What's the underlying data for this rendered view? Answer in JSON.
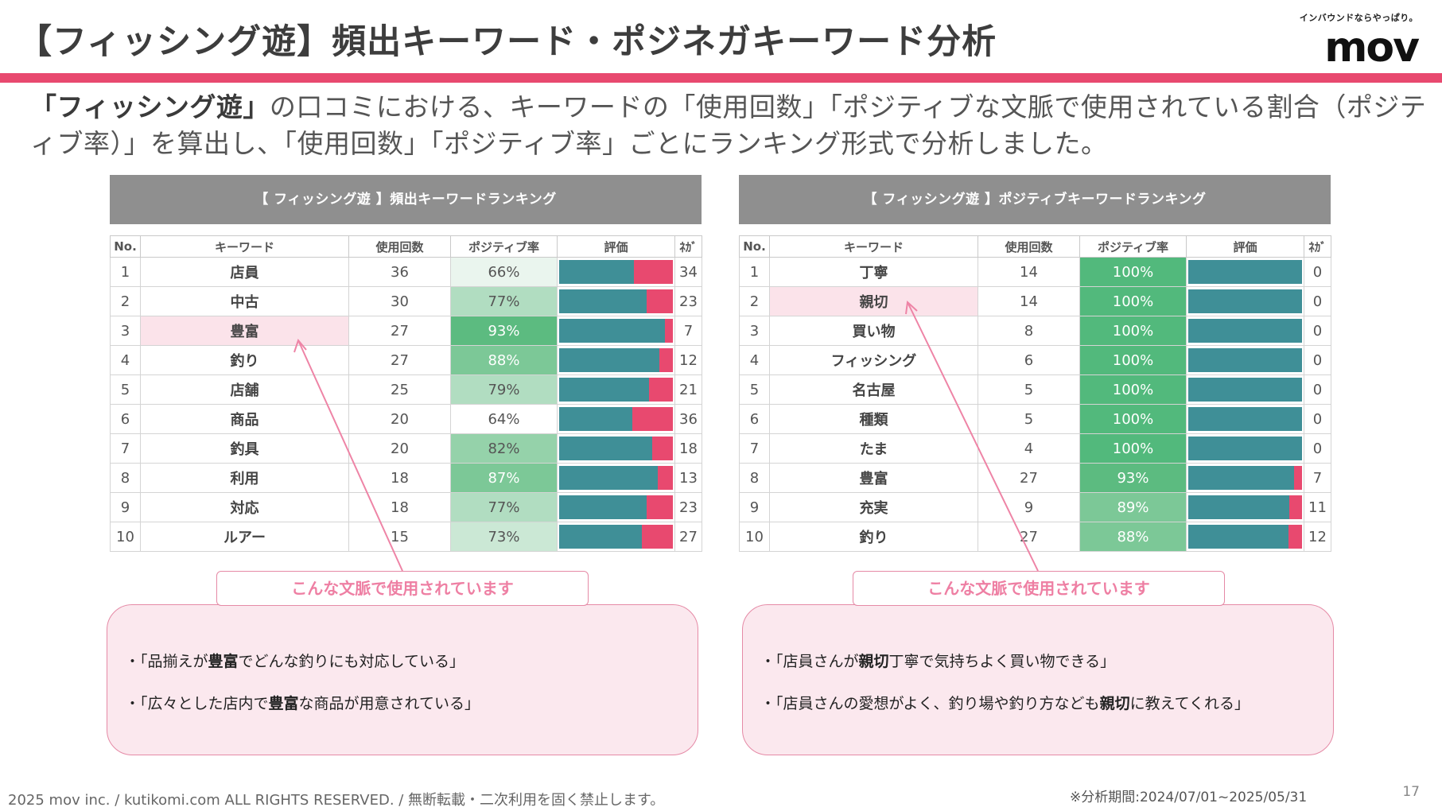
{
  "header": {
    "title": "【フィッシング遊】頻出キーワード・ポジネガキーワード分析",
    "brand_tagline": "インバウンドならやっぱり。",
    "brand_logo": "mov"
  },
  "intro": {
    "bold": "「フィッシング遊」",
    "text": "の口コミにおける、キーワードの「使用回数」「ポジティブな文脈で使用されている割合（ポジティブ率）」を算出し、「使用回数」「ポジティブ率」ごとにランキング形式で分析しました。"
  },
  "colors": {
    "accent": "#e8496f",
    "bar_positive": "#3f8f97",
    "bar_negative": "#e8496f",
    "highlight": "#fbe3ea"
  },
  "columns": [
    "No.",
    "キーワード",
    "使用回数",
    "ポジティブ率",
    "評価",
    "ﾈｶﾞ"
  ],
  "left_panel": {
    "title": "【 フィッシング遊 】頻出キーワードランキング",
    "rows": [
      {
        "no": "1",
        "keyword": "店員",
        "count": "36",
        "rate": "66%",
        "pos": 66,
        "neg": "34"
      },
      {
        "no": "2",
        "keyword": "中古",
        "count": "30",
        "rate": "77%",
        "pos": 77,
        "neg": "23"
      },
      {
        "no": "3",
        "keyword": "豊富",
        "count": "27",
        "rate": "93%",
        "pos": 93,
        "neg": "7"
      },
      {
        "no": "4",
        "keyword": "釣り",
        "count": "27",
        "rate": "88%",
        "pos": 88,
        "neg": "12"
      },
      {
        "no": "5",
        "keyword": "店舗",
        "count": "25",
        "rate": "79%",
        "pos": 79,
        "neg": "21"
      },
      {
        "no": "6",
        "keyword": "商品",
        "count": "20",
        "rate": "64%",
        "pos": 64,
        "neg": "36"
      },
      {
        "no": "7",
        "keyword": "釣具",
        "count": "20",
        "rate": "82%",
        "pos": 82,
        "neg": "18"
      },
      {
        "no": "8",
        "keyword": "利用",
        "count": "18",
        "rate": "87%",
        "pos": 87,
        "neg": "13"
      },
      {
        "no": "9",
        "keyword": "対応",
        "count": "18",
        "rate": "77%",
        "pos": 77,
        "neg": "23"
      },
      {
        "no": "10",
        "keyword": "ルアー",
        "count": "15",
        "rate": "73%",
        "pos": 73,
        "neg": "27"
      }
    ],
    "highlight_keyword": "豊富",
    "context_label": "こんな文脈で使用されています",
    "quotes": [
      {
        "pre": "・「品揃えが",
        "bold": "豊富",
        "post": "でどんな釣りにも対応している」"
      },
      {
        "pre": "・「広々とした店内で",
        "bold": "豊富",
        "post": "な商品が用意されている」"
      }
    ]
  },
  "right_panel": {
    "title": "【 フィッシング遊 】ポジティブキーワードランキング",
    "rows": [
      {
        "no": "1",
        "keyword": "丁寧",
        "count": "14",
        "rate": "100%",
        "pos": 100,
        "neg": "0"
      },
      {
        "no": "2",
        "keyword": "親切",
        "count": "14",
        "rate": "100%",
        "pos": 100,
        "neg": "0"
      },
      {
        "no": "3",
        "keyword": "買い物",
        "count": "8",
        "rate": "100%",
        "pos": 100,
        "neg": "0"
      },
      {
        "no": "4",
        "keyword": "フィッシング",
        "count": "6",
        "rate": "100%",
        "pos": 100,
        "neg": "0"
      },
      {
        "no": "5",
        "keyword": "名古屋",
        "count": "5",
        "rate": "100%",
        "pos": 100,
        "neg": "0"
      },
      {
        "no": "6",
        "keyword": "種類",
        "count": "5",
        "rate": "100%",
        "pos": 100,
        "neg": "0"
      },
      {
        "no": "7",
        "keyword": "たま",
        "count": "4",
        "rate": "100%",
        "pos": 100,
        "neg": "0"
      },
      {
        "no": "8",
        "keyword": "豊富",
        "count": "27",
        "rate": "93%",
        "pos": 93,
        "neg": "7"
      },
      {
        "no": "9",
        "keyword": "充実",
        "count": "9",
        "rate": "89%",
        "pos": 89,
        "neg": "11"
      },
      {
        "no": "10",
        "keyword": "釣り",
        "count": "27",
        "rate": "88%",
        "pos": 88,
        "neg": "12"
      }
    ],
    "highlight_keyword": "親切",
    "context_label": "こんな文脈で使用されています",
    "quotes": [
      {
        "pre": "・「店員さんが",
        "bold": "親切",
        "post": "丁寧で気持ちよく買い物できる」"
      },
      {
        "pre": "・「店員さんの愛想がよく、釣り場や釣り方なども",
        "bold": "親切",
        "post": "に教えてくれる」"
      }
    ]
  },
  "footer": {
    "copyright": "2025 mov inc. / kutikomi.com ALL RIGHTS RESERVED. / 無断転載・二次利用を固く禁止します。",
    "period": "※分析期間:2024/07/01~2025/05/31",
    "page": "17"
  }
}
